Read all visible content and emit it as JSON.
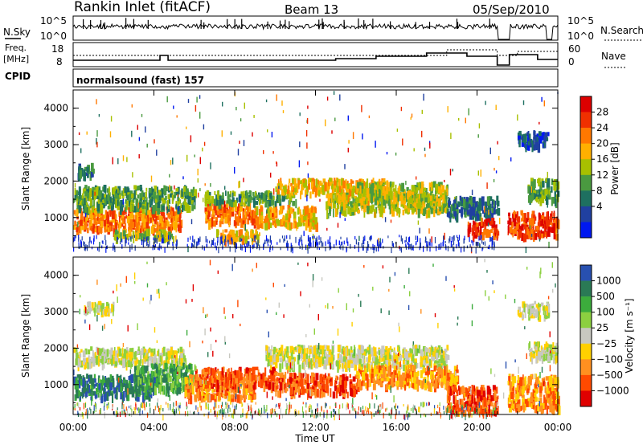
{
  "header": {
    "title": "Rankin Inlet (fitACF)",
    "beam": "Beam 13",
    "date": "05/Sep/2010"
  },
  "panels": {
    "nsky": {
      "label": "N.Sky",
      "ticks": [
        "10^5",
        "10^0"
      ],
      "right_label": "N.Search",
      "right_ticks": [
        "10^5",
        "10^0"
      ]
    },
    "freq": {
      "label_line1": "Freq.",
      "label_line2": "[MHz]",
      "ticks": [
        "18",
        "8"
      ],
      "right_label": "Nave",
      "right_ticks": [
        "60",
        "0"
      ]
    },
    "cpid": {
      "label": "CPID",
      "value": "normalsound (fast) 157"
    }
  },
  "chart_data": [
    {
      "type": "heatmap",
      "name": "power",
      "ylabel": "Slant Range [km]",
      "yticks": [
        "4000",
        "3000",
        "2000",
        "1000"
      ],
      "ytick_values": [
        4000,
        3000,
        2000,
        1000
      ],
      "ylim": [
        180,
        4500
      ],
      "xlim": [
        0,
        24
      ],
      "colorbar": {
        "label": "Power [dB]",
        "ticks": [
          "28",
          "24",
          "20",
          "16",
          "12",
          "8",
          "4"
        ],
        "colors": [
          "#dd0000",
          "#f03000",
          "#ff7800",
          "#ffb000",
          "#a8c000",
          "#4a9a40",
          "#1e7060",
          "#2040a0",
          "#0018f0"
        ]
      },
      "bands": [
        {
          "t": [
            0,
            5.3
          ],
          "r": [
            700,
            1300
          ],
          "level": 2
        },
        {
          "t": [
            0,
            6
          ],
          "r": [
            1300,
            1900
          ],
          "level": 5
        },
        {
          "t": [
            0.2,
            1
          ],
          "r": [
            2200,
            2500
          ],
          "level": 6
        },
        {
          "t": [
            2,
            5
          ],
          "r": [
            480,
            700
          ],
          "level": 4
        },
        {
          "t": [
            6.5,
            9
          ],
          "r": [
            900,
            1450
          ],
          "level": 2
        },
        {
          "t": [
            7,
            9.2
          ],
          "r": [
            450,
            700
          ],
          "level": 3
        },
        {
          "t": [
            6.5,
            11
          ],
          "r": [
            1450,
            1750
          ],
          "level": 5
        },
        {
          "t": [
            9,
            12
          ],
          "r": [
            850,
            1350
          ],
          "level": 3
        },
        {
          "t": [
            10,
            15.5
          ],
          "r": [
            1700,
            2100
          ],
          "level": 3
        },
        {
          "t": [
            12.5,
            18.5
          ],
          "r": [
            1200,
            1700
          ],
          "level": 4
        },
        {
          "t": [
            14,
            18.5
          ],
          "r": [
            1500,
            2000
          ],
          "level": 4
        },
        {
          "t": [
            18.5,
            21
          ],
          "r": [
            1100,
            1600
          ],
          "level": 6
        },
        {
          "t": [
            19.5,
            21
          ],
          "r": [
            550,
            1000
          ],
          "level": 1
        },
        {
          "t": [
            21.5,
            24
          ],
          "r": [
            550,
            1200
          ],
          "level": 1
        },
        {
          "t": [
            22.5,
            24
          ],
          "r": [
            1500,
            2100
          ],
          "level": 5
        },
        {
          "t": [
            22,
            23.5
          ],
          "r": [
            3000,
            3400
          ],
          "level": 7
        }
      ]
    },
    {
      "type": "heatmap",
      "name": "velocity",
      "ylabel": "Slant Range [km]",
      "yticks": [
        "4000",
        "3000",
        "2000",
        "1000"
      ],
      "ytick_values": [
        4000,
        3000,
        2000,
        1000
      ],
      "ylim": [
        180,
        4500
      ],
      "xlim": [
        0,
        24
      ],
      "xlabel": "Time UT",
      "xticks": [
        "00:00",
        "04:00",
        "08:00",
        "12:00",
        "16:00",
        "20:00",
        "00:00"
      ],
      "xtick_values": [
        0,
        4,
        8,
        12,
        16,
        20,
        24
      ],
      "colorbar": {
        "label": "Velocity [m s⁻¹]",
        "ticks": [
          "1000",
          "500",
          "100",
          "25",
          "−25",
          "−100",
          "−500",
          "−1000"
        ],
        "colors": [
          "#2850b0",
          "#2a7a55",
          "#3cac3c",
          "#8cd040",
          "#c8c8c0",
          "#ffd000",
          "#ff9020",
          "#ff4a00",
          "#e00000"
        ]
      },
      "bands": [
        {
          "t": [
            0,
            5.5
          ],
          "r": [
            1600,
            2050
          ],
          "level": 4
        },
        {
          "t": [
            0,
            4
          ],
          "r": [
            700,
            1300
          ],
          "level": 1
        },
        {
          "t": [
            3,
            6
          ],
          "r": [
            900,
            1600
          ],
          "level": 2
        },
        {
          "t": [
            5.5,
            9
          ],
          "r": [
            700,
            1300
          ],
          "level": 6
        },
        {
          "t": [
            6,
            10
          ],
          "r": [
            1000,
            1500
          ],
          "level": 7
        },
        {
          "t": [
            9.5,
            18.5
          ],
          "r": [
            1550,
            2100
          ],
          "level": 4
        },
        {
          "t": [
            10,
            14
          ],
          "r": [
            800,
            1350
          ],
          "level": 7
        },
        {
          "t": [
            14,
            19
          ],
          "r": [
            1000,
            1550
          ],
          "level": 6
        },
        {
          "t": [
            18.5,
            21
          ],
          "r": [
            300,
            1000
          ],
          "level": 7
        },
        {
          "t": [
            21.5,
            24
          ],
          "r": [
            400,
            1300
          ],
          "level": 6
        },
        {
          "t": [
            22.5,
            24
          ],
          "r": [
            1700,
            2200
          ],
          "level": 4
        },
        {
          "t": [
            22,
            23.5
          ],
          "r": [
            2900,
            3300
          ],
          "level": 4
        },
        {
          "t": [
            0.5,
            2
          ],
          "r": [
            3000,
            3300
          ],
          "level": 4
        }
      ]
    }
  ]
}
